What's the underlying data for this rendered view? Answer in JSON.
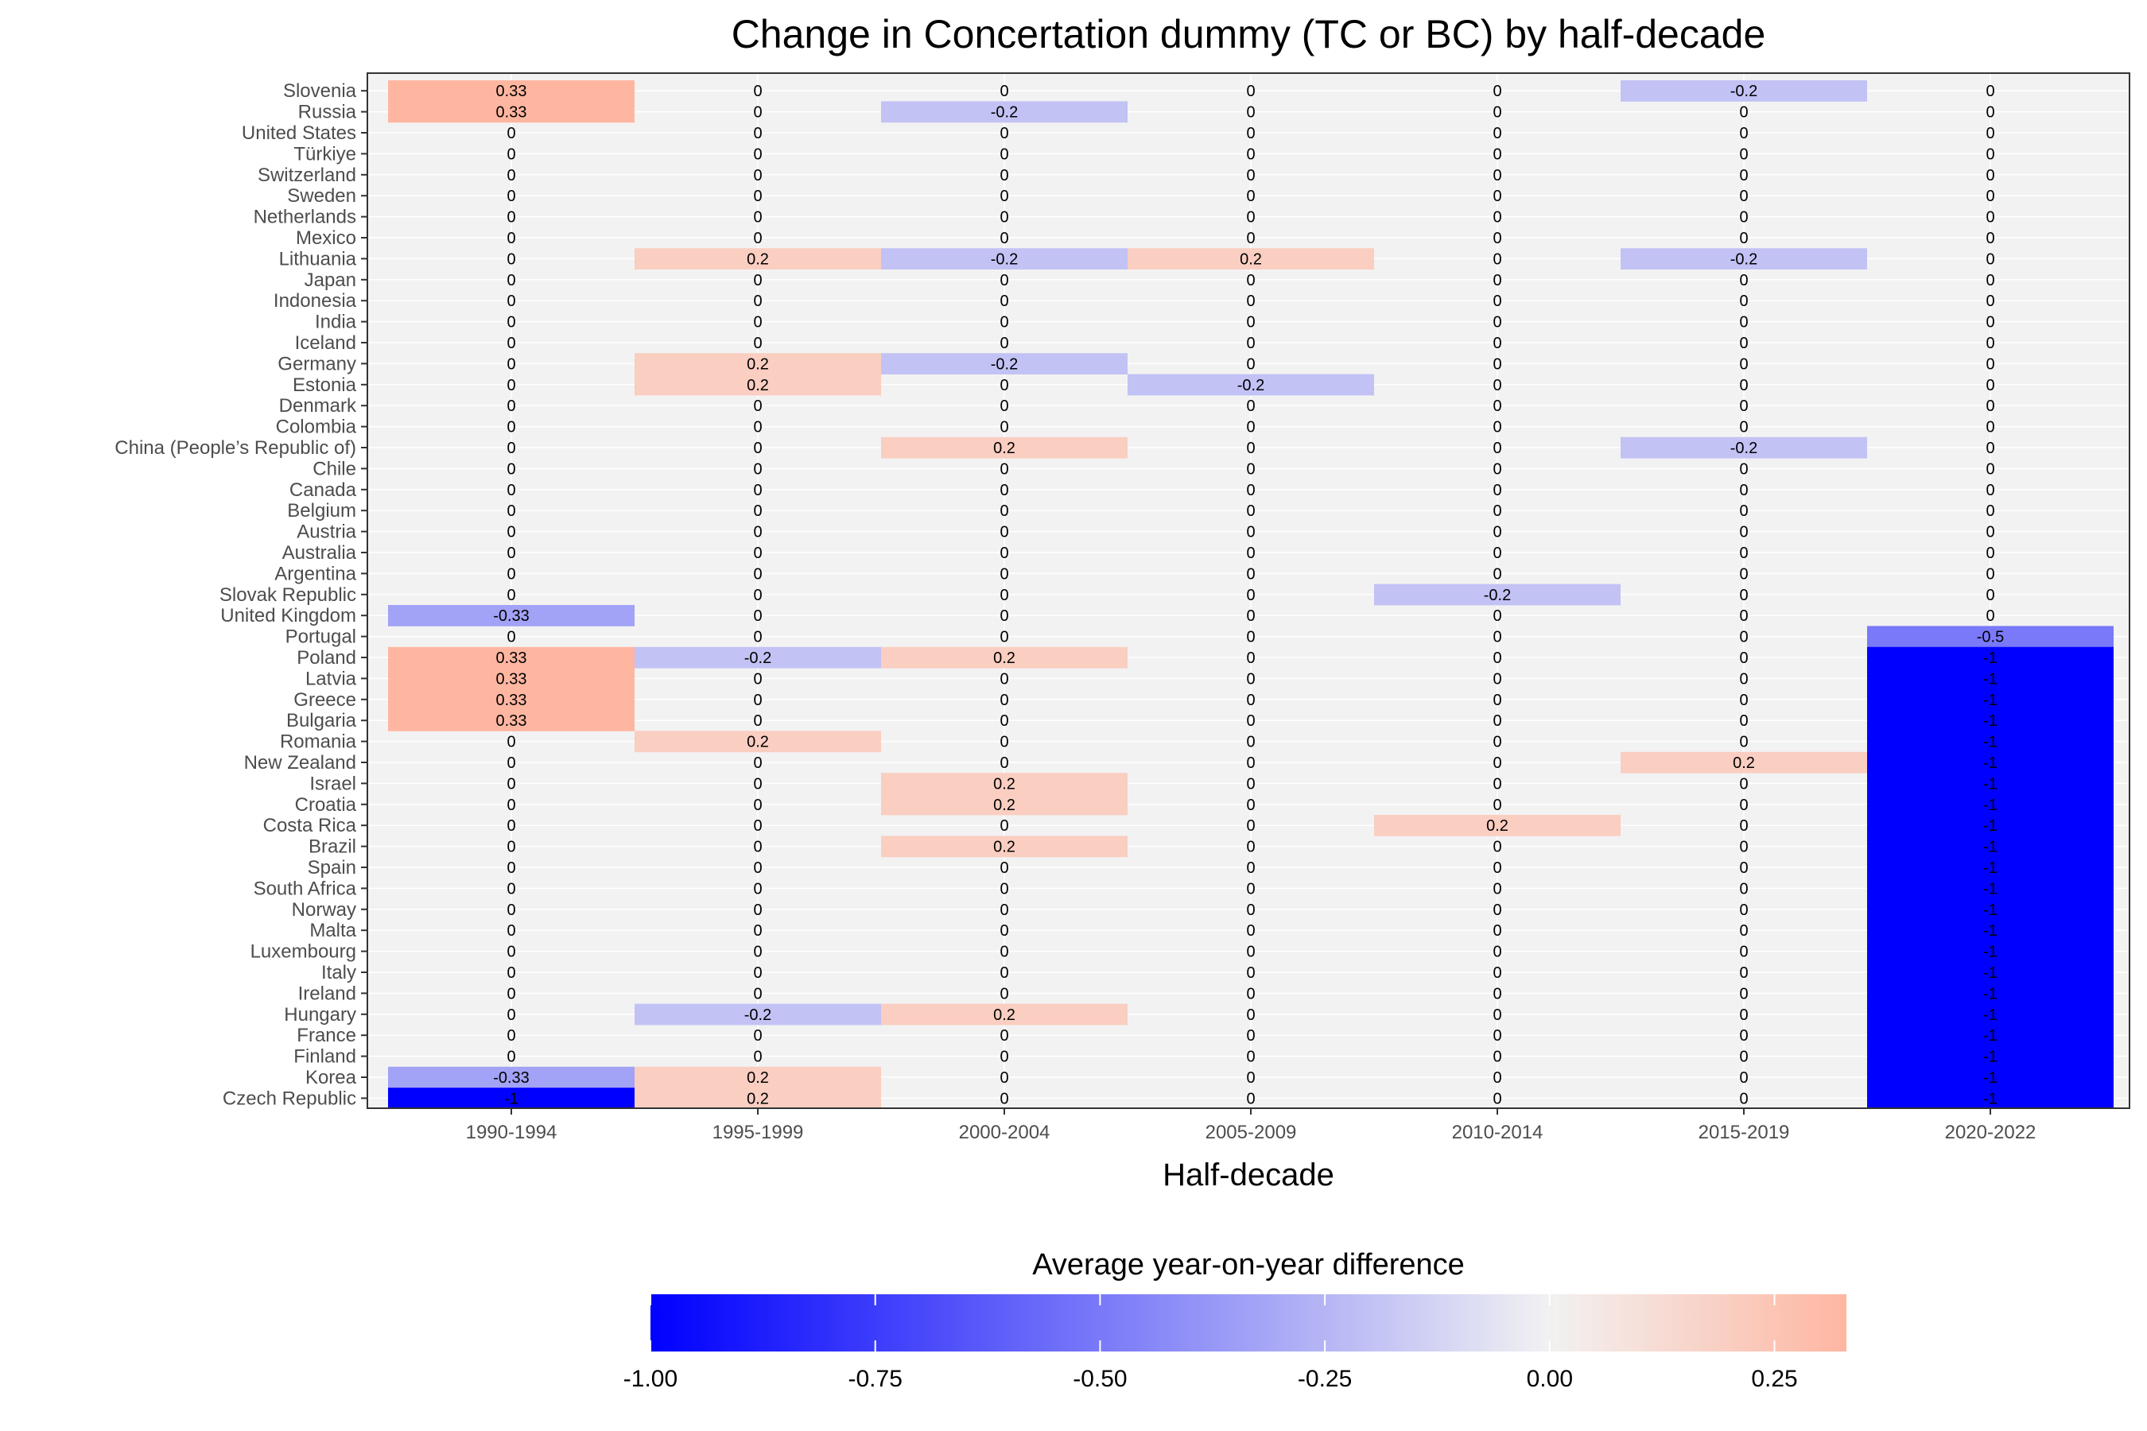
{
  "chart_data": {
    "type": "heatmap",
    "title": "Change in Concertation dummy (TC or BC) by half-decade",
    "xlabel": "Half-decade",
    "ylabel": "",
    "x": [
      "1990-1994",
      "1995-1999",
      "2000-2004",
      "2005-2009",
      "2010-2014",
      "2015-2019",
      "2020-2022"
    ],
    "y": [
      "Slovenia",
      "Russia",
      "United States",
      "Türkiye",
      "Switzerland",
      "Sweden",
      "Netherlands",
      "Mexico",
      "Lithuania",
      "Japan",
      "Indonesia",
      "India",
      "Iceland",
      "Germany",
      "Estonia",
      "Denmark",
      "Colombia",
      "China (People’s Republic of)",
      "Chile",
      "Canada",
      "Belgium",
      "Austria",
      "Australia",
      "Argentina",
      "Slovak Republic",
      "United Kingdom",
      "Portugal",
      "Poland",
      "Latvia",
      "Greece",
      "Bulgaria",
      "Romania",
      "New Zealand",
      "Israel",
      "Croatia",
      "Costa Rica",
      "Brazil",
      "Spain",
      "South Africa",
      "Norway",
      "Malta",
      "Luxembourg",
      "Italy",
      "Ireland",
      "Hungary",
      "France",
      "Finland",
      "Korea",
      "Czech Republic"
    ],
    "values": [
      [
        0.33,
        0,
        0,
        0,
        0,
        -0.2,
        0
      ],
      [
        0.33,
        0,
        -0.2,
        0,
        0,
        0,
        0
      ],
      [
        0,
        0,
        0,
        0,
        0,
        0,
        0
      ],
      [
        0,
        0,
        0,
        0,
        0,
        0,
        0
      ],
      [
        0,
        0,
        0,
        0,
        0,
        0,
        0
      ],
      [
        0,
        0,
        0,
        0,
        0,
        0,
        0
      ],
      [
        0,
        0,
        0,
        0,
        0,
        0,
        0
      ],
      [
        0,
        0,
        0,
        0,
        0,
        0,
        0
      ],
      [
        0,
        0.2,
        -0.2,
        0.2,
        0,
        -0.2,
        0
      ],
      [
        0,
        0,
        0,
        0,
        0,
        0,
        0
      ],
      [
        0,
        0,
        0,
        0,
        0,
        0,
        0
      ],
      [
        0,
        0,
        0,
        0,
        0,
        0,
        0
      ],
      [
        0,
        0,
        0,
        0,
        0,
        0,
        0
      ],
      [
        0,
        0.2,
        -0.2,
        0,
        0,
        0,
        0
      ],
      [
        0,
        0.2,
        0,
        -0.2,
        0,
        0,
        0
      ],
      [
        0,
        0,
        0,
        0,
        0,
        0,
        0
      ],
      [
        0,
        0,
        0,
        0,
        0,
        0,
        0
      ],
      [
        0,
        0,
        0.2,
        0,
        0,
        -0.2,
        0
      ],
      [
        0,
        0,
        0,
        0,
        0,
        0,
        0
      ],
      [
        0,
        0,
        0,
        0,
        0,
        0,
        0
      ],
      [
        0,
        0,
        0,
        0,
        0,
        0,
        0
      ],
      [
        0,
        0,
        0,
        0,
        0,
        0,
        0
      ],
      [
        0,
        0,
        0,
        0,
        0,
        0,
        0
      ],
      [
        0,
        0,
        0,
        0,
        0,
        0,
        0
      ],
      [
        0,
        0,
        0,
        0,
        -0.2,
        0,
        0
      ],
      [
        -0.33,
        0,
        0,
        0,
        0,
        0,
        0
      ],
      [
        0,
        0,
        0,
        0,
        0,
        0,
        -0.5
      ],
      [
        0.33,
        -0.2,
        0.2,
        0,
        0,
        0,
        -1
      ],
      [
        0.33,
        0,
        0,
        0,
        0,
        0,
        -1
      ],
      [
        0.33,
        0,
        0,
        0,
        0,
        0,
        -1
      ],
      [
        0.33,
        0,
        0,
        0,
        0,
        0,
        -1
      ],
      [
        0,
        0.2,
        0,
        0,
        0,
        0,
        -1
      ],
      [
        0,
        0,
        0,
        0,
        0,
        0.2,
        -1
      ],
      [
        0,
        0,
        0.2,
        0,
        0,
        0,
        -1
      ],
      [
        0,
        0,
        0.2,
        0,
        0,
        0,
        -1
      ],
      [
        0,
        0,
        0,
        0,
        0.2,
        0,
        -1
      ],
      [
        0,
        0,
        0.2,
        0,
        0,
        0,
        -1
      ],
      [
        0,
        0,
        0,
        0,
        0,
        0,
        -1
      ],
      [
        0,
        0,
        0,
        0,
        0,
        0,
        -1
      ],
      [
        0,
        0,
        0,
        0,
        0,
        0,
        -1
      ],
      [
        0,
        0,
        0,
        0,
        0,
        0,
        -1
      ],
      [
        0,
        0,
        0,
        0,
        0,
        0,
        -1
      ],
      [
        0,
        0,
        0,
        0,
        0,
        0,
        -1
      ],
      [
        0,
        0,
        0,
        0,
        0,
        0,
        -1
      ],
      [
        0,
        -0.2,
        0.2,
        0,
        0,
        0,
        -1
      ],
      [
        0,
        0,
        0,
        0,
        0,
        0,
        -1
      ],
      [
        0,
        0,
        0,
        0,
        0,
        0,
        -1
      ],
      [
        -0.33,
        0.2,
        0,
        0,
        0,
        0,
        -1
      ],
      [
        -1,
        0.2,
        0,
        0,
        0,
        0,
        -1
      ]
    ],
    "legend": {
      "title": "Average year-on-year difference",
      "ticks": [
        "-1.00",
        "-0.75",
        "-0.50",
        "-0.25",
        "0.00",
        "0.25"
      ],
      "range": [
        -1,
        0.33
      ],
      "placement": "bottom"
    },
    "colors": {
      "low": "#0000ff",
      "mid": "#f2f2f2",
      "high": "#ffb6a1",
      "panel": "#f2f2f2",
      "grid": "#ffffff"
    },
    "grid": true
  }
}
